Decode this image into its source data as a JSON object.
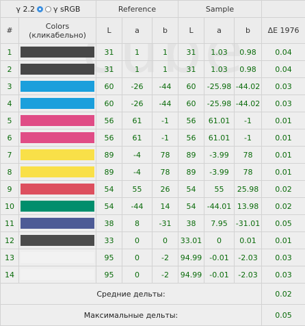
{
  "header": {
    "gamma_22": "γ 2.2",
    "gamma_srgb": "γ sRGB",
    "reference": "Reference",
    "sample": "Sample",
    "num": "#",
    "colors": "Colors\n(кликабельно)",
    "L": "L",
    "a": "a",
    "b": "b",
    "delta": "ΔE 1976"
  },
  "rows": [
    {
      "n": "1",
      "color": "#474747",
      "ref": [
        "31",
        "1",
        "1"
      ],
      "smp": [
        "31",
        "1.03",
        "0.98"
      ],
      "de": "0.04"
    },
    {
      "n": "2",
      "color": "#474747",
      "ref": [
        "31",
        "1",
        "1"
      ],
      "smp": [
        "31",
        "1.03",
        "0.98"
      ],
      "de": "0.04"
    },
    {
      "n": "3",
      "color": "#1b9fdc",
      "ref": [
        "60",
        "-26",
        "-44"
      ],
      "smp": [
        "60",
        "-25.98",
        "-44.02"
      ],
      "de": "0.03"
    },
    {
      "n": "4",
      "color": "#1b9fdc",
      "ref": [
        "60",
        "-26",
        "-44"
      ],
      "smp": [
        "60",
        "-25.98",
        "-44.02"
      ],
      "de": "0.03"
    },
    {
      "n": "5",
      "color": "#e04c86",
      "ref": [
        "56",
        "61",
        "-1"
      ],
      "smp": [
        "56",
        "61.01",
        "-1"
      ],
      "de": "0.01"
    },
    {
      "n": "6",
      "color": "#e04c86",
      "ref": [
        "56",
        "61",
        "-1"
      ],
      "smp": [
        "56",
        "61.01",
        "-1"
      ],
      "de": "0.01"
    },
    {
      "n": "7",
      "color": "#f9e048",
      "ref": [
        "89",
        "-4",
        "78"
      ],
      "smp": [
        "89",
        "-3.99",
        "78"
      ],
      "de": "0.01"
    },
    {
      "n": "8",
      "color": "#f9e048",
      "ref": [
        "89",
        "-4",
        "78"
      ],
      "smp": [
        "89",
        "-3.99",
        "78"
      ],
      "de": "0.01"
    },
    {
      "n": "9",
      "color": "#dd4f5e",
      "ref": [
        "54",
        "55",
        "26"
      ],
      "smp": [
        "54",
        "55",
        "25.98"
      ],
      "de": "0.02"
    },
    {
      "n": "10",
      "color": "#008e6c",
      "ref": [
        "54",
        "-44",
        "14"
      ],
      "smp": [
        "54",
        "-44.01",
        "13.98"
      ],
      "de": "0.02"
    },
    {
      "n": "11",
      "color": "#4d5b96",
      "ref": [
        "38",
        "8",
        "-31"
      ],
      "smp": [
        "38",
        "7.95",
        "-31.01"
      ],
      "de": "0.05"
    },
    {
      "n": "12",
      "color": "#4b4b4b",
      "ref": [
        "33",
        "0",
        "0"
      ],
      "smp": [
        "33.01",
        "0",
        "0.01"
      ],
      "de": "0.01"
    },
    {
      "n": "13",
      "color": "#f2f2f2",
      "ref": [
        "95",
        "0",
        "-2"
      ],
      "smp": [
        "94.99",
        "-0.01",
        "-2.03"
      ],
      "de": "0.03"
    },
    {
      "n": "14",
      "color": "#f2f2f2",
      "ref": [
        "95",
        "0",
        "-2"
      ],
      "smp": [
        "94.99",
        "-0.01",
        "-2.03"
      ],
      "de": "0.03"
    }
  ],
  "footer": {
    "avg_label": "Средние дельты:",
    "avg_value": "0.02",
    "max_label": "Максимальные дельты:",
    "max_value": "0.05"
  },
  "colors": {
    "value_text": "#0a6b0a",
    "radio_selected": "#3b8fe0"
  }
}
